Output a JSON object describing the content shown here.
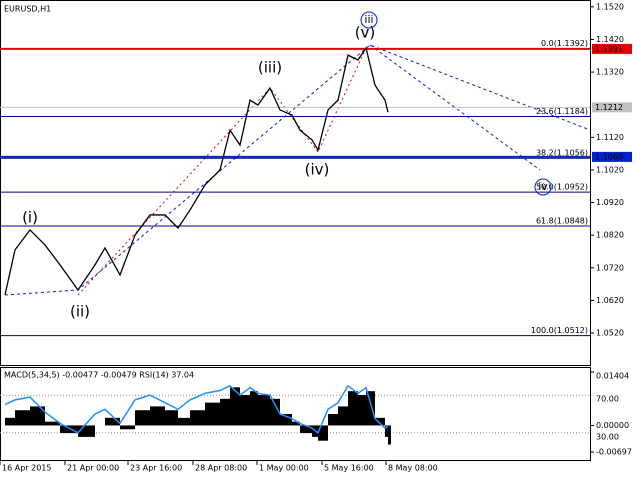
{
  "chart_data": [
    {
      "type": "line",
      "title": "EURUSD,H1",
      "x": [
        5,
        15,
        30,
        45,
        60,
        78,
        95,
        105,
        120,
        135,
        150,
        165,
        178,
        190,
        205,
        220,
        230,
        240,
        250,
        258,
        270,
        280,
        292,
        300,
        312,
        318,
        328,
        338,
        348,
        358,
        366,
        375,
        385,
        388
      ],
      "series": [
        {
          "color": "#000000",
          "values": [
            1.0637,
            1.0775,
            1.0836,
            1.079,
            1.0729,
            1.0652,
            1.0729,
            1.0781,
            1.0698,
            1.082,
            1.0882,
            1.0882,
            1.0842,
            1.0897,
            1.0974,
            1.102,
            1.1142,
            1.1096,
            1.1234,
            1.1219,
            1.1271,
            1.1204,
            1.1188,
            1.1142,
            1.1112,
            1.1081,
            1.1204,
            1.1234,
            1.1372,
            1.1357,
            1.1394,
            1.128,
            1.1234,
            1.1197
          ]
        }
      ],
      "xlim": [
        0,
        590
      ],
      "ylim": [
        1.0422,
        1.1541
      ],
      "xticks": [
        {
          "value": 0,
          "label": "16 Apr 2015"
        },
        {
          "value": 65,
          "label": "21 Apr 00:00"
        },
        {
          "value": 128,
          "label": "23 Apr 16:00"
        },
        {
          "value": 193,
          "label": "28 Apr 08:00"
        },
        {
          "value": 257,
          "label": "1 May 00:00"
        },
        {
          "value": 322,
          "label": "5 May 16:00"
        },
        {
          "value": 386,
          "label": "8 May 08:00"
        }
      ],
      "yticks": [
        {
          "value": 1.152,
          "label": "1.1520"
        },
        {
          "value": 1.142,
          "label": "1.1420"
        },
        {
          "value": 1.132,
          "label": "1.1320"
        },
        {
          "value": 1.112,
          "label": "1.1120"
        },
        {
          "value": 1.102,
          "label": "1.1020"
        },
        {
          "value": 1.092,
          "label": "1.0920"
        },
        {
          "value": 1.082,
          "label": "1.0820"
        },
        {
          "value": 1.072,
          "label": "1.0720"
        },
        {
          "value": 1.062,
          "label": "1.0620"
        },
        {
          "value": 1.052,
          "label": "1.0520"
        }
      ],
      "levels": [
        {
          "value": 1.1391,
          "label": "1.1391",
          "color": "#e00000"
        },
        {
          "value": 1.1212,
          "label": "1.1212",
          "color": "#c0c0c0"
        },
        {
          "value": 1.106,
          "label": "1.1060",
          "color": "#0022cc"
        }
      ],
      "fib_color": "#000080",
      "fib_levels": [
        {
          "value": 1.1392,
          "label": "0.0(1.1392)"
        },
        {
          "value": 1.1184,
          "label": "23.6(1.1184)"
        },
        {
          "value": 1.1056,
          "label": "38.2(1.1056)"
        },
        {
          "value": 1.0952,
          "label": "50.0(1.0952)"
        },
        {
          "value": 1.0848,
          "label": "61.8(1.0848)"
        },
        {
          "value": 1.0512,
          "label": "100.0(1.0512)"
        }
      ],
      "annotations": [
        {
          "text": "(i)",
          "color": "#e00000"
        },
        {
          "text": "(ii)",
          "color": "#e00000"
        },
        {
          "text": "(iii)",
          "color": "#e00000"
        },
        {
          "text": "(iv)",
          "color": "#e00000"
        },
        {
          "text": "(v)",
          "color": "#e00000"
        },
        {
          "text": "iii",
          "color": "#0022cc"
        },
        {
          "text": "iv",
          "color": "#0022cc"
        }
      ]
    },
    {
      "type": "bar",
      "title": "MACD(5,34,5) -0.00477 -0.00479 RSI(14) 37.04",
      "x": [
        5,
        15,
        30,
        45,
        60,
        78,
        95,
        105,
        120,
        135,
        150,
        165,
        178,
        190,
        205,
        220,
        230,
        240,
        250,
        258,
        270,
        280,
        292,
        300,
        312,
        318,
        328,
        338,
        348,
        358,
        366,
        375,
        385,
        388
      ],
      "series": [
        {
          "color": "#000000",
          "values": [
            0.002,
            0.004,
            0.005,
            0.001,
            -0.002,
            -0.003,
            0.0,
            0.002,
            -0.001,
            0.004,
            0.005,
            0.004,
            0.002,
            0.004,
            0.006,
            0.007,
            0.01,
            0.008,
            0.009,
            0.008,
            0.007,
            0.003,
            0.001,
            -0.002,
            -0.003,
            -0.004,
            0.003,
            0.005,
            0.009,
            0.008,
            0.009,
            0.002,
            -0.003,
            -0.005
          ]
        },
        {
          "color": "#1e90ff",
          "axis": "y2",
          "values": [
            60,
            65,
            68,
            52,
            40,
            30,
            50,
            55,
            40,
            65,
            70,
            62,
            55,
            65,
            72,
            75,
            80,
            70,
            78,
            72,
            70,
            50,
            45,
            40,
            35,
            30,
            55,
            62,
            80,
            72,
            78,
            45,
            35,
            37.04
          ]
        }
      ],
      "xlim": [
        0,
        590
      ],
      "ylim": [
        -0.00933,
        0.01535
      ],
      "yticks": [
        {
          "value": 0.01404,
          "label": "0.01404"
        },
        {
          "value": 0,
          "label": "0.00000"
        },
        {
          "value": -0.00697,
          "label": "-0.00697"
        }
      ],
      "y2lim": [
        0,
        100
      ],
      "y2ticks": [
        {
          "value": 70,
          "label": "70.00"
        },
        {
          "value": 30,
          "label": "30.00"
        }
      ]
    }
  ]
}
